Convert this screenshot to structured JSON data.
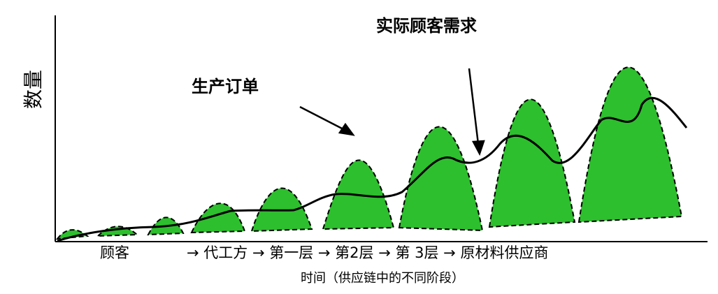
{
  "ylabel": "数量",
  "annotations": {
    "orders": "生产订单",
    "demand": "实际顾客需求"
  },
  "stages": {
    "customer": "顾客",
    "chain": "→ 代工方 → 第一层 → 第2层 → 第 3层 → 原材料供应商"
  },
  "xlabel": "时间（供应链中的不同阶段）",
  "colors": {
    "fill": "#2dbf2d",
    "line": "#000000"
  }
}
